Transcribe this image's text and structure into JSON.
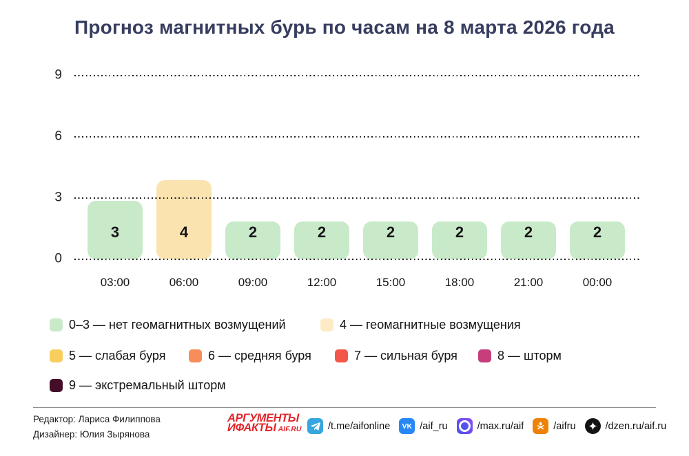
{
  "title": "Прогноз магнитных бурь по часам на 8 марта 2026 года",
  "chart_data": {
    "type": "bar",
    "title": "Прогноз магнитных бурь по часам на 8 марта 2026 года",
    "categories": [
      "03:00",
      "06:00",
      "09:00",
      "12:00",
      "15:00",
      "18:00",
      "21:00",
      "00:00"
    ],
    "values": [
      3,
      4,
      2,
      2,
      2,
      2,
      2,
      2
    ],
    "bar_colors": [
      "#c9eac9",
      "#fbe3b0",
      "#c9eac9",
      "#c9eac9",
      "#c9eac9",
      "#c9eac9",
      "#c9eac9",
      "#c9eac9"
    ],
    "xlabel": "",
    "ylabel": "",
    "yticks": [
      0,
      3,
      6,
      9
    ],
    "ylim": [
      0,
      9.5
    ],
    "grid": "horizontal-dotted",
    "legend_position": "below"
  },
  "legend": {
    "rows": [
      [
        {
          "color": "#c9eac9",
          "label": "0–3 — нет геомагнитных возмущений"
        },
        {
          "color": "#fdebc5",
          "label": "4 — геомагнитные возмущения"
        }
      ],
      [
        {
          "color": "#f8cf5f",
          "label": "5 — слабая буря"
        },
        {
          "color": "#f68d5a",
          "label": "6 — средняя буря"
        },
        {
          "color": "#f4564a",
          "label": "7 — сильная буря"
        },
        {
          "color": "#c63e7c",
          "label": "8 — шторм"
        }
      ],
      [
        {
          "color": "#440d28",
          "label": "9 — экстремальный шторм"
        }
      ]
    ]
  },
  "footer": {
    "credits": {
      "editor": "Редактор: Лариса Филиппова",
      "designer": "Дизайнер: Юлия Зырянова"
    },
    "logo": {
      "line1": "АРГУМЕНТЫ",
      "line2": "ИФАКТЫ",
      "suffix": "AIF.RU",
      "color": "#e3252b"
    },
    "socials": [
      {
        "icon": "telegram-icon",
        "label": "/t.me/aifonline",
        "color": "#36a6de"
      },
      {
        "icon": "vk-icon",
        "label": "/aif_ru",
        "color": "#2787f5"
      },
      {
        "icon": "max-icon",
        "label": "/max.ru/aif",
        "color": "#7a4df3"
      },
      {
        "icon": "ok-icon",
        "label": "/aifru",
        "color": "#ee8208"
      },
      {
        "icon": "dzen-icon",
        "label": "/dzen.ru/aif.ru",
        "color": "#141414"
      }
    ]
  }
}
